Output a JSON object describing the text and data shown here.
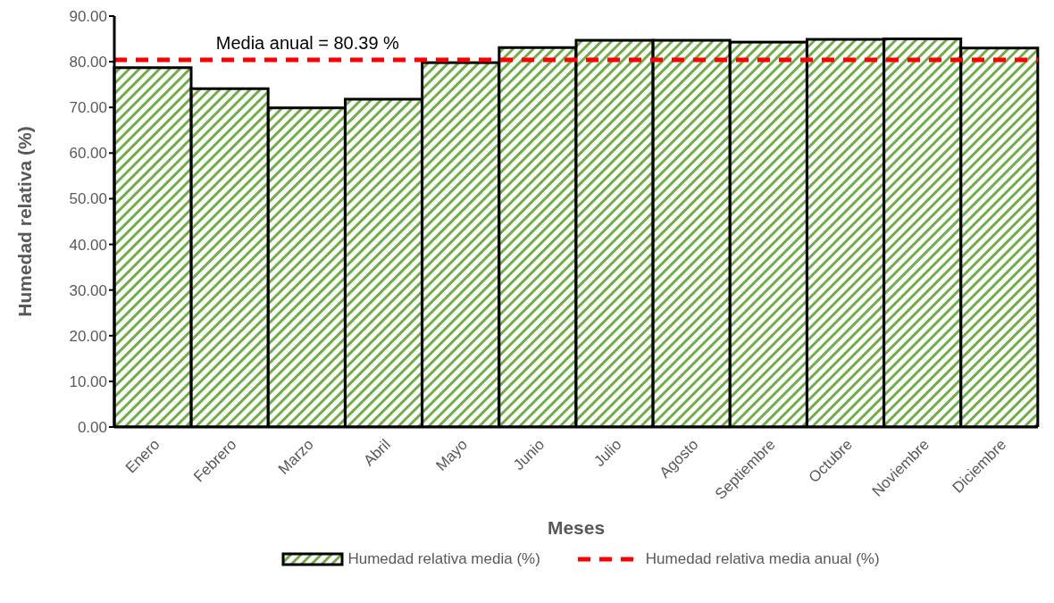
{
  "chart_data": {
    "type": "bar",
    "xlabel": "Meses",
    "ylabel": "Humedad relativa (%)",
    "categories": [
      "Enero",
      "Febrero",
      "Marzo",
      "Abril",
      "Mayo",
      "Junio",
      "Julio",
      "Agosto",
      "Septiembre",
      "Octubre",
      "Noviembre",
      "Diciembre"
    ],
    "series": [
      {
        "name": "Humedad relativa media (%)",
        "color": "#70ad47",
        "values": [
          78.7,
          74.1,
          69.9,
          71.8,
          79.8,
          83.1,
          84.7,
          84.7,
          84.3,
          84.9,
          85.0,
          83.0
        ]
      }
    ],
    "ylim": [
      0,
      90
    ],
    "yticks": [
      {
        "value": 0,
        "label": "0.00"
      },
      {
        "value": 10,
        "label": "10.00"
      },
      {
        "value": 20,
        "label": "20.00"
      },
      {
        "value": 30,
        "label": "30.00"
      },
      {
        "value": 40,
        "label": "40.00"
      },
      {
        "value": 50,
        "label": "50.00"
      },
      {
        "value": 60,
        "label": "60.00"
      },
      {
        "value": 70,
        "label": "70.00"
      },
      {
        "value": 80,
        "label": "80.00"
      },
      {
        "value": 90,
        "label": "90.00"
      }
    ],
    "ref_lines": [
      {
        "axis": "y",
        "value": 80.39,
        "label": "Humedad relativa media anual (%)",
        "color": "#ff0000",
        "line_style": "dashed"
      }
    ],
    "annotations": [
      "Media anual = 80.39 %"
    ],
    "grid": false,
    "legend": "bottom"
  }
}
